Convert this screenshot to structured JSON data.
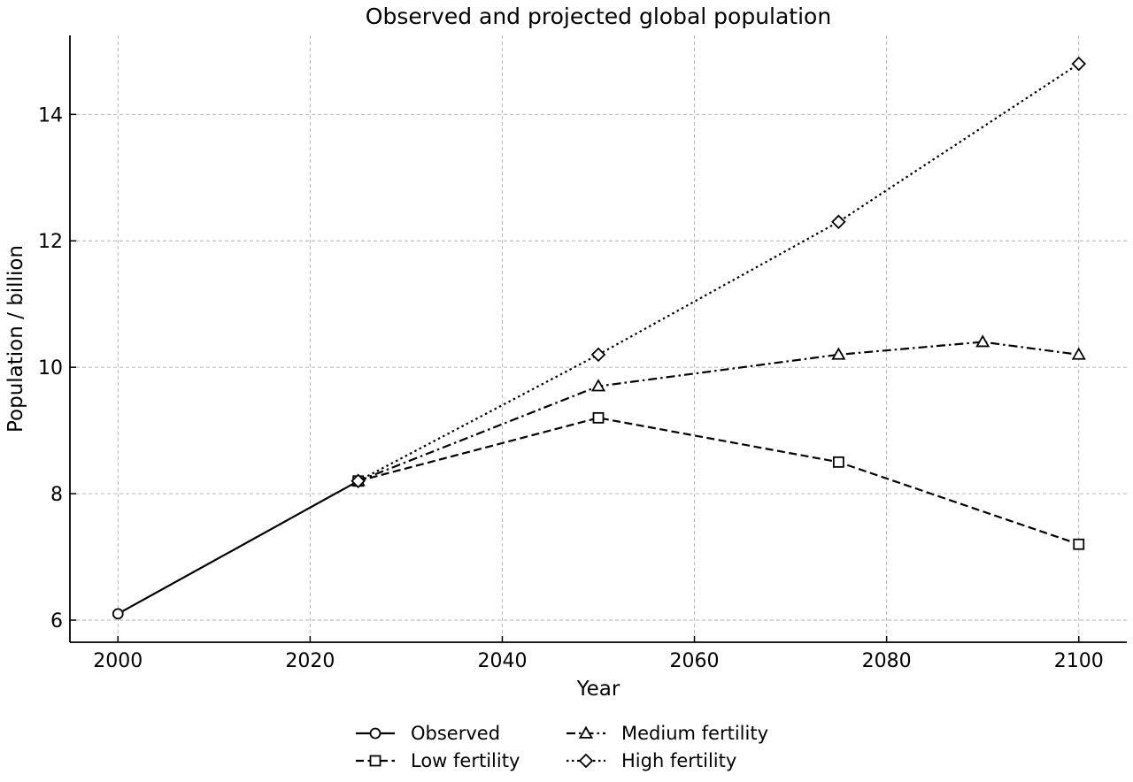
{
  "chart_data": {
    "type": "line",
    "title": "Observed and projected global population",
    "xlabel": "Year",
    "ylabel": "Population / billion",
    "xlim": [
      1995,
      2105
    ],
    "ylim": [
      5.65,
      15.25
    ],
    "xticks": [
      2000,
      2020,
      2040,
      2060,
      2080,
      2100
    ],
    "yticks": [
      6,
      8,
      10,
      12,
      14
    ],
    "grid": true,
    "legend_position": "bottom-center",
    "series": [
      {
        "name": "Observed",
        "marker": "circle",
        "linestyle": "solid",
        "x": [
          2000,
          2025
        ],
        "y": [
          6.1,
          8.2
        ]
      },
      {
        "name": "Low fertility",
        "marker": "square",
        "linestyle": "dashed",
        "x": [
          2025,
          2050,
          2075,
          2100
        ],
        "y": [
          8.2,
          9.2,
          8.5,
          7.2
        ]
      },
      {
        "name": "Medium fertility",
        "marker": "triangle",
        "linestyle": "dashdot",
        "x": [
          2025,
          2050,
          2075,
          2090,
          2100
        ],
        "y": [
          8.2,
          9.7,
          10.2,
          10.4,
          10.2
        ]
      },
      {
        "name": "High fertility",
        "marker": "diamond",
        "linestyle": "dotted",
        "x": [
          2025,
          2050,
          2075,
          2100
        ],
        "y": [
          8.2,
          10.2,
          12.3,
          14.8
        ]
      }
    ]
  }
}
